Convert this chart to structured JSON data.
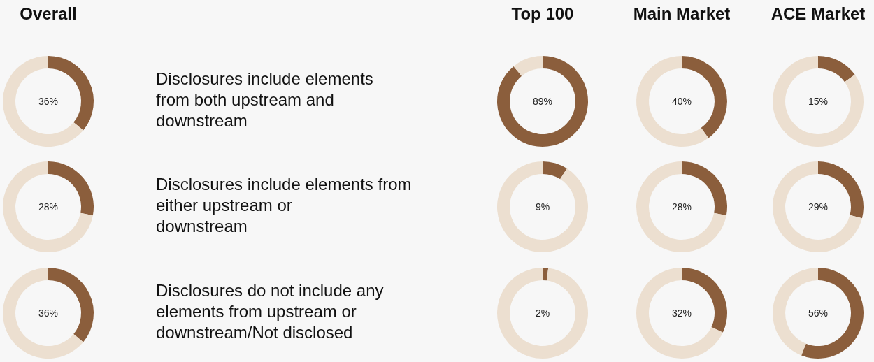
{
  "chart_data": [
    {
      "type": "donut",
      "title": "Overall",
      "categories": [
        null,
        null
      ],
      "values": [
        36,
        64
      ],
      "colors": [
        "#8b5e3c",
        "#ecdfd0"
      ],
      "annotations": [
        "36%",
        "Disclosures include elements\nfrom both upstream and\ndownstream"
      ]
    },
    {
      "type": "donut",
      "title": "Top 100",
      "categories": [
        null,
        null
      ],
      "values": [
        89,
        11
      ],
      "colors": [
        "#8b5e3c",
        "#ecdfd0"
      ],
      "annotations": [
        "89%"
      ]
    },
    {
      "type": "donut",
      "title": "Main Market",
      "categories": [
        null,
        null
      ],
      "values": [
        40,
        60
      ],
      "colors": [
        "#8b5e3c",
        "#ecdfd0"
      ],
      "annotations": [
        "40%"
      ]
    },
    {
      "type": "donut",
      "title": "ACE Market",
      "categories": [
        null,
        null
      ],
      "values": [
        15,
        85
      ],
      "colors": [
        "#8b5e3c",
        "#ecdfd0"
      ],
      "annotations": [
        "15%"
      ]
    },
    {
      "type": "donut",
      "categories": [
        null,
        null
      ],
      "values": [
        28,
        72
      ],
      "colors": [
        "#8b5e3c",
        "#ecdfd0"
      ],
      "annotations": [
        "28%",
        "Disclosures include elements from\neither upstream or\ndownstream"
      ]
    },
    {
      "type": "donut",
      "categories": [
        null,
        null
      ],
      "values": [
        9,
        91
      ],
      "colors": [
        "#8b5e3c",
        "#ecdfd0"
      ],
      "annotations": [
        "9%"
      ]
    },
    {
      "type": "donut",
      "categories": [
        null,
        null
      ],
      "values": [
        28,
        72
      ],
      "colors": [
        "#8b5e3c",
        "#ecdfd0"
      ],
      "annotations": [
        "28%"
      ]
    },
    {
      "type": "donut",
      "categories": [
        null,
        null
      ],
      "values": [
        29,
        71
      ],
      "colors": [
        "#8b5e3c",
        "#ecdfd0"
      ],
      "annotations": [
        "29%"
      ]
    },
    {
      "type": "donut",
      "categories": [
        null,
        null
      ],
      "values": [
        36,
        64
      ],
      "colors": [
        "#8b5e3c",
        "#ecdfd0"
      ],
      "annotations": [
        "36%",
        "Disclosures do not include any\nelements from upstream or\ndownstream/Not disclosed"
      ]
    },
    {
      "type": "donut",
      "categories": [
        null,
        null
      ],
      "values": [
        2,
        98
      ],
      "colors": [
        "#8b5e3c",
        "#ecdfd0"
      ],
      "annotations": [
        "2%"
      ]
    },
    {
      "type": "donut",
      "categories": [
        null,
        null
      ],
      "values": [
        32,
        68
      ],
      "colors": [
        "#8b5e3c",
        "#ecdfd0"
      ],
      "annotations": [
        "32%"
      ]
    },
    {
      "type": "donut",
      "categories": [
        null,
        null
      ],
      "values": [
        56,
        44
      ],
      "colors": [
        "#8b5e3c",
        "#ecdfd0"
      ],
      "annotations": [
        "56%"
      ]
    }
  ]
}
